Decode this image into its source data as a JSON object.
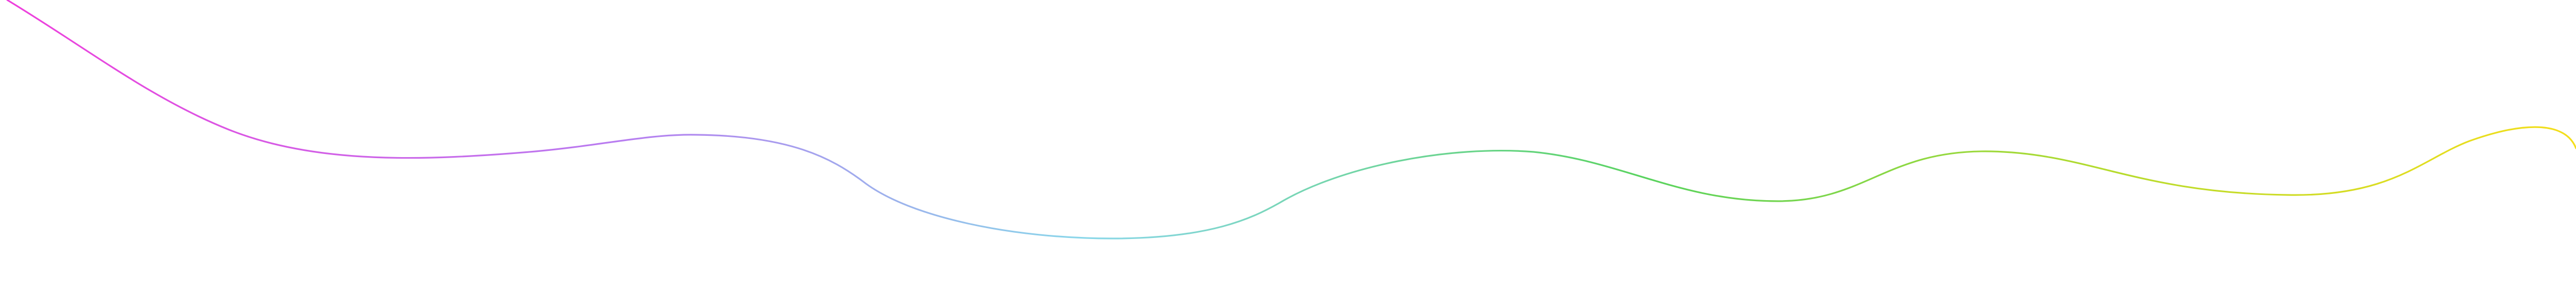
{
  "graphic": {
    "type": "decorative-gradient-wave",
    "gradient_colors": [
      "#ef3fdc",
      "#b87cf0",
      "#8ad7ea",
      "#59d35e",
      "#b6db2d",
      "#f5de1b"
    ]
  }
}
